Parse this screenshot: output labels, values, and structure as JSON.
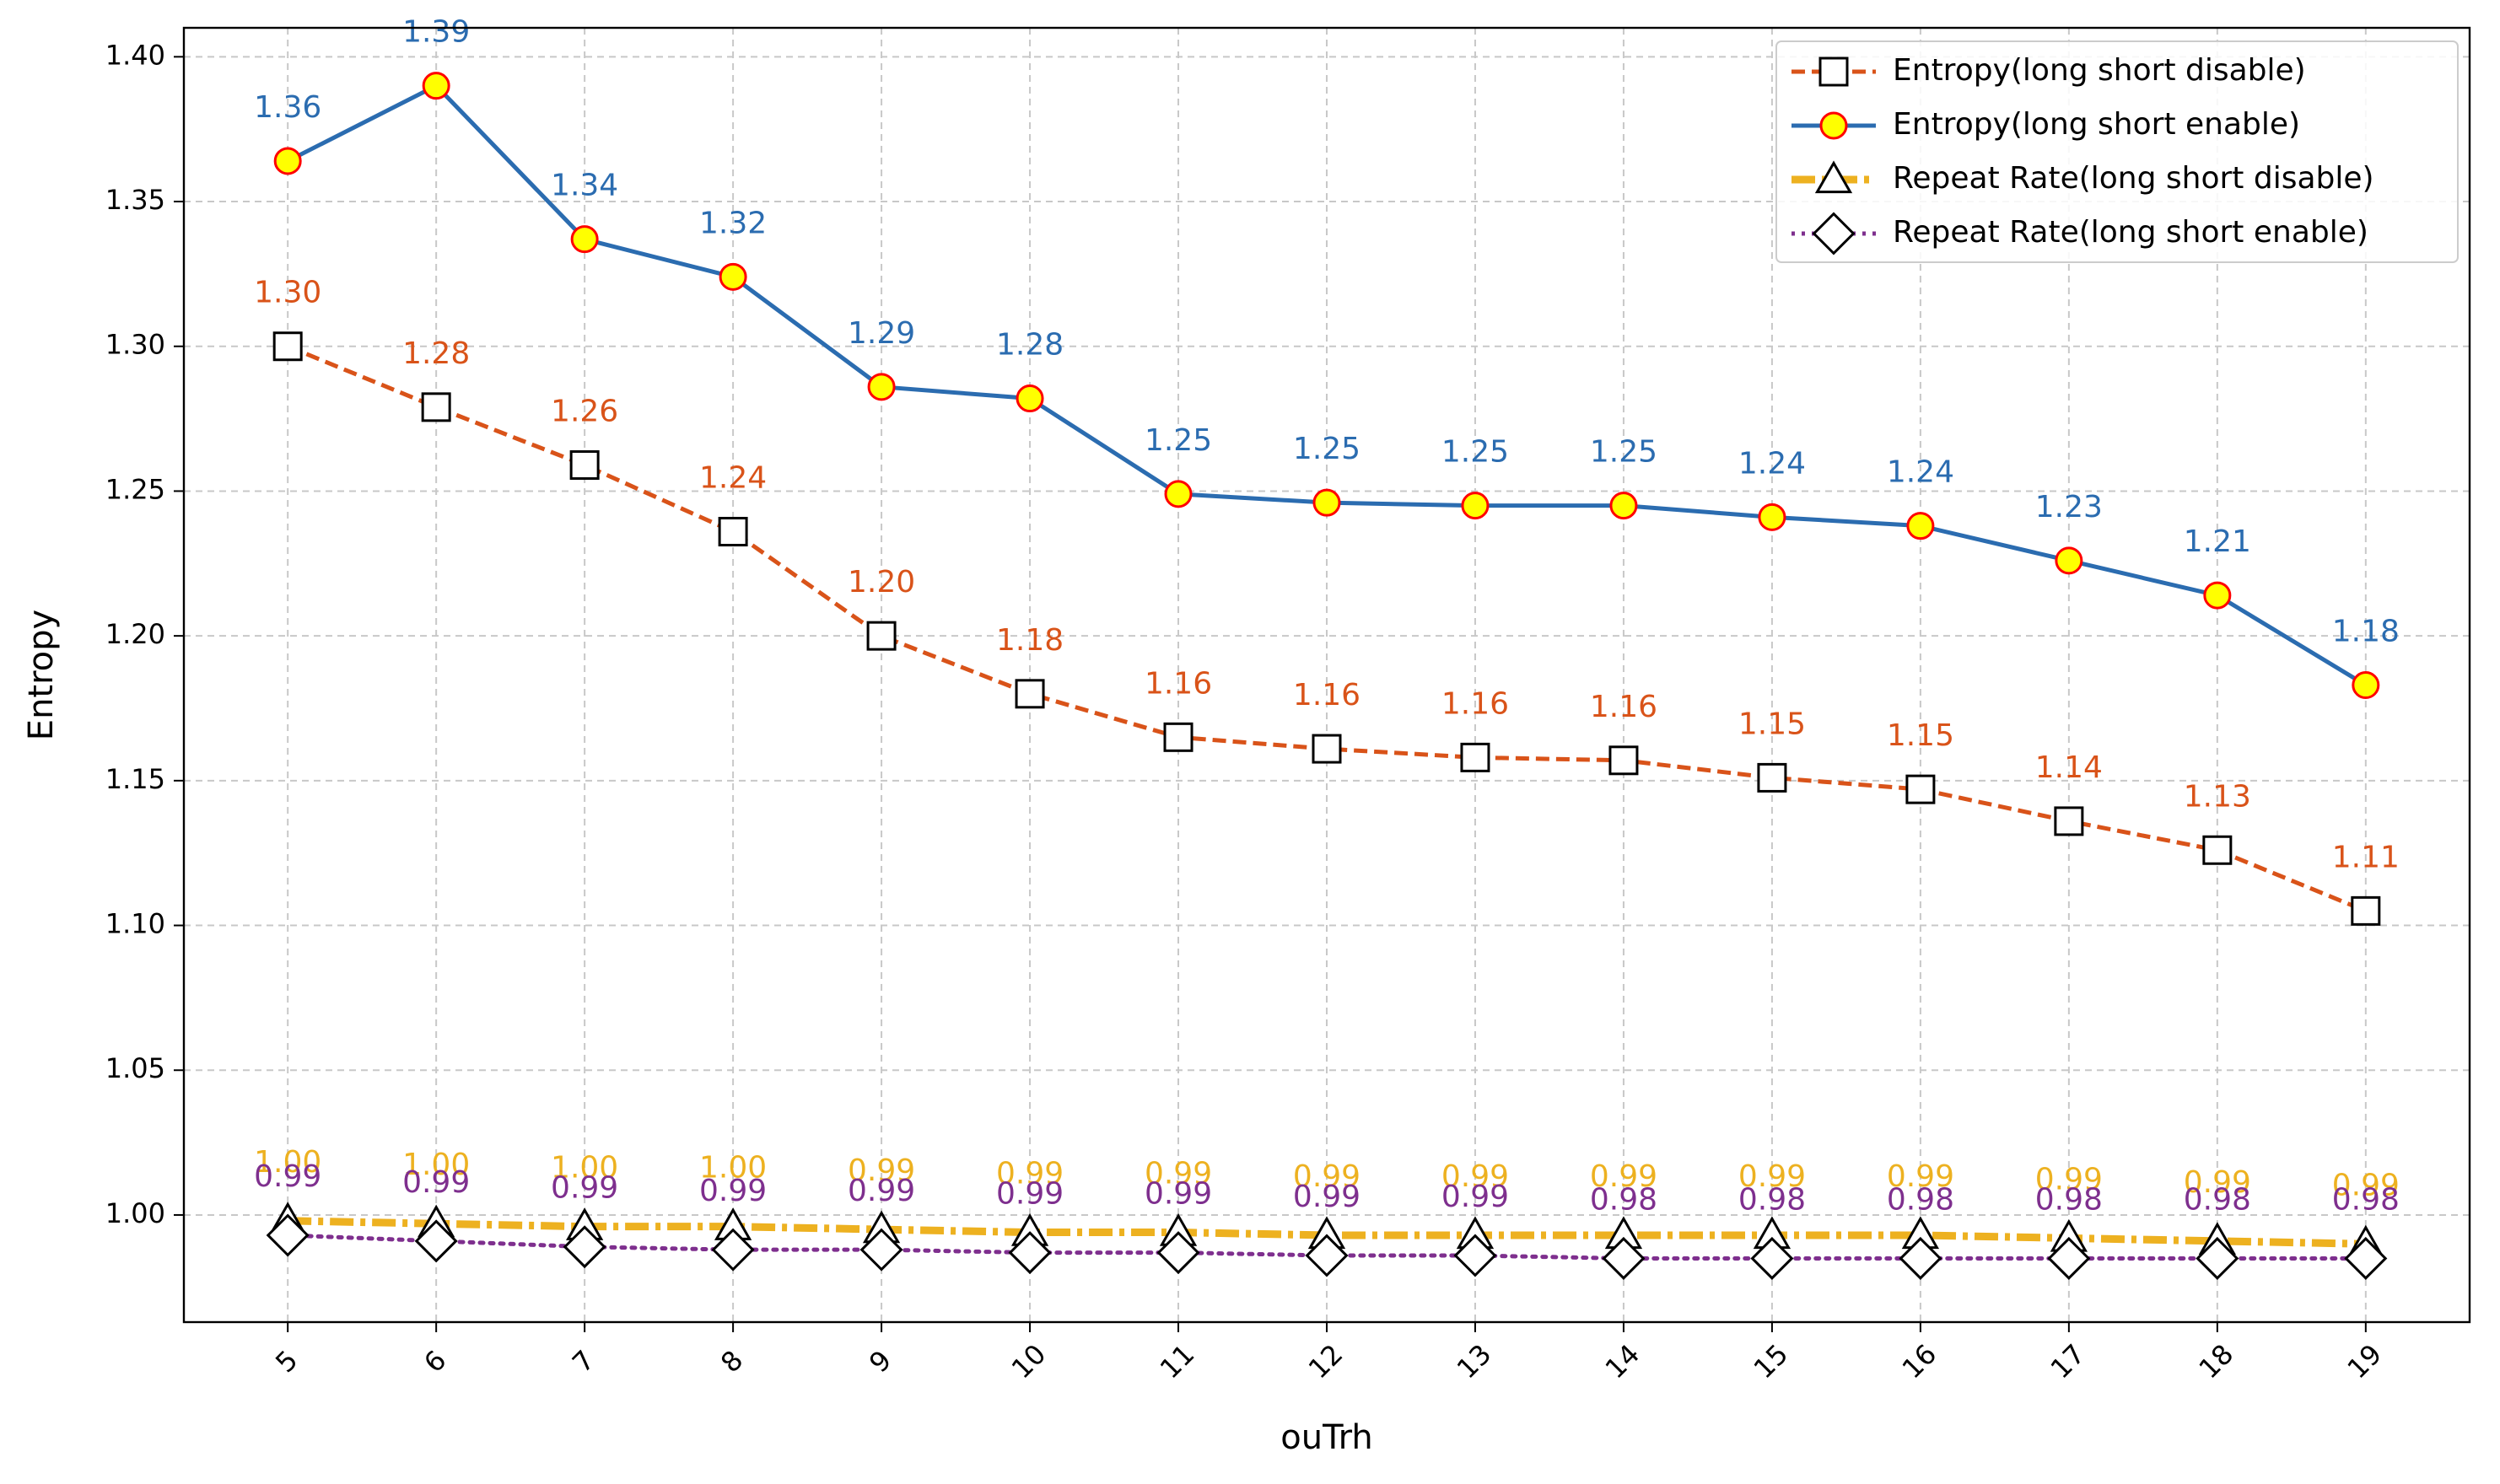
{
  "chart_data": {
    "type": "line",
    "xlabel": "ouTrh",
    "ylabel": "Entropy",
    "x": [
      5,
      6,
      7,
      8,
      9,
      10,
      11,
      12,
      13,
      14,
      15,
      16,
      17,
      18,
      19
    ],
    "ylim": [
      0.963,
      1.41
    ],
    "yticks": [
      "1.00",
      "1.05",
      "1.10",
      "1.15",
      "1.20",
      "1.25",
      "1.30",
      "1.35",
      "1.40"
    ],
    "grid": true,
    "legend_position": "top-right",
    "series": [
      {
        "name": "Entropy(long short disable)",
        "color": "#D95319",
        "line_style": "dashed",
        "marker": "square",
        "values": [
          1.3,
          1.279,
          1.259,
          1.236,
          1.2,
          1.18,
          1.165,
          1.161,
          1.158,
          1.157,
          1.151,
          1.147,
          1.136,
          1.126,
          1.105
        ],
        "labels": [
          "1.30",
          "1.28",
          "1.26",
          "1.24",
          "1.20",
          "1.18",
          "1.16",
          "1.16",
          "1.16",
          "1.16",
          "1.15",
          "1.15",
          "1.14",
          "1.13",
          "1.11"
        ]
      },
      {
        "name": "Entropy(long short enable)",
        "color": "#2B6CB0",
        "line_style": "solid",
        "marker": "circle",
        "marker_fill": "#FFFF00",
        "marker_edge": "#FF0000",
        "values": [
          1.364,
          1.39,
          1.337,
          1.324,
          1.286,
          1.282,
          1.249,
          1.246,
          1.245,
          1.245,
          1.241,
          1.238,
          1.226,
          1.214,
          1.183
        ],
        "labels": [
          "1.36",
          "1.39",
          "1.34",
          "1.32",
          "1.29",
          "1.28",
          "1.25",
          "1.25",
          "1.25",
          "1.25",
          "1.24",
          "1.24",
          "1.23",
          "1.21",
          "1.18"
        ]
      },
      {
        "name": "Repeat Rate(long short disable)",
        "color": "#EDB120",
        "line_style": "dashdot",
        "marker": "triangle",
        "values": [
          0.998,
          0.997,
          0.996,
          0.996,
          0.995,
          0.994,
          0.994,
          0.993,
          0.993,
          0.993,
          0.993,
          0.993,
          0.992,
          0.991,
          0.99
        ],
        "labels": [
          "1.00",
          "1.00",
          "1.00",
          "1.00",
          "0.99",
          "0.99",
          "0.99",
          "0.99",
          "0.99",
          "0.99",
          "0.99",
          "0.99",
          "0.99",
          "0.99",
          "0.99"
        ]
      },
      {
        "name": "Repeat Rate(long short enable)",
        "color": "#7E2F8E",
        "line_style": "dotted",
        "marker": "diamond",
        "values": [
          0.993,
          0.991,
          0.989,
          0.988,
          0.988,
          0.987,
          0.987,
          0.986,
          0.986,
          0.985,
          0.985,
          0.985,
          0.985,
          0.985,
          0.985
        ],
        "labels": [
          "0.99",
          "0.99",
          "0.99",
          "0.99",
          "0.99",
          "0.99",
          "0.99",
          "0.99",
          "0.99",
          "0.98",
          "0.98",
          "0.98",
          "0.98",
          "0.98",
          "0.98"
        ]
      }
    ]
  }
}
